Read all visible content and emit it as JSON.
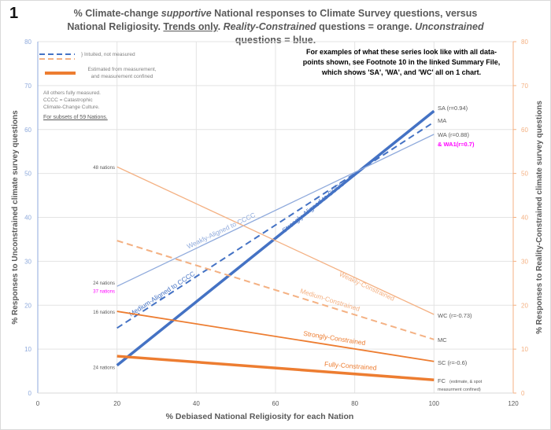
{
  "figure_number": "1",
  "title": {
    "part1": "% Climate-change ",
    "part2_italic": "supportive",
    "part3": " National responses to Climate Survey questions, versus National Religiosity. ",
    "part4_underlined": "Trends only",
    "part5": ". ",
    "part6_italic": "Reality-Constrained",
    "part7": " questions = orange. ",
    "part8_italic": "Unconstrained",
    "part9": " questions = blue."
  },
  "annotation": "For examples of what these series look like with all data-points shown, see Footnote 10 in the linked Summary File, which shows 'SA', 'WA', and 'WC' all on 1 chart.",
  "legend": {
    "dashed_label": "} Intuited, not measured",
    "solid_label_1": "Estimated from measurement,",
    "solid_label_2": "and measurement confined"
  },
  "notes": {
    "line1": "All others fully measured.",
    "line2": "CCCC = Catastrophic",
    "line3": "Climate-Change Culture.",
    "subsets": "For subsets of 59 Nations."
  },
  "chart_data": {
    "type": "line",
    "xlabel": "% Debiased National Religiosity for each Nation",
    "ylabel_left": "% Responses to Unconstrained climate survey questions",
    "ylabel_right": "% Responses to Reality-Constrained climate survey questions",
    "xlim": [
      0,
      120
    ],
    "ylim_left": [
      0,
      80
    ],
    "ylim_right": [
      0,
      80
    ],
    "x_ticks": [
      0,
      20,
      40,
      60,
      80,
      100,
      120
    ],
    "y_ticks": [
      0,
      10,
      20,
      30,
      40,
      50,
      60,
      70,
      80
    ],
    "grid": true,
    "colors": {
      "unconstrained": "#4472c4",
      "constrained": "#ed7d31",
      "light_blue": "#8faadc",
      "light_orange": "#f4b183",
      "magenta": "#ff00ff"
    },
    "series": [
      {
        "name": "Strongly-Aligned to CCCC",
        "end_label": "SA (r=0.94)",
        "x": [
          20,
          100
        ],
        "y": [
          6.3,
          64.2
        ],
        "style": "solid-thick",
        "color": "#4472c4"
      },
      {
        "name": "Medium-Aligned to CCCC",
        "end_label": "MA",
        "x": [
          20,
          100
        ],
        "y": [
          14.8,
          61.7
        ],
        "style": "dashed",
        "color": "#4472c4"
      },
      {
        "name": "Weakly-Aligned to CCCC",
        "end_label": "WA (r=0.88)",
        "end_label_2": "& WA1(r=0.7)",
        "x": [
          20,
          100
        ],
        "y": [
          24.3,
          58.9
        ],
        "style": "solid-thin",
        "color": "#8faadc"
      },
      {
        "name": "Weakly-Constrained",
        "end_label": "WC (r=-0.73)",
        "x": [
          20,
          100
        ],
        "y": [
          51.5,
          17.9
        ],
        "style": "solid-thin",
        "color": "#f4b183"
      },
      {
        "name": "Medium-Constrained",
        "end_label": "MC",
        "x": [
          20,
          100
        ],
        "y": [
          34.7,
          12.2
        ],
        "style": "dashed",
        "color": "#f4b183"
      },
      {
        "name": "Strongly-Constrained",
        "end_label": "SC (r=-0.6)",
        "x": [
          20,
          100
        ],
        "y": [
          18.6,
          7.2
        ],
        "style": "solid",
        "color": "#ed7d31"
      },
      {
        "name": "Fully-Constrained",
        "end_label": "FC",
        "end_note_1": "(estimate, & spot",
        "end_note_2": "measurment confined)",
        "x": [
          20,
          100
        ],
        "y": [
          8.4,
          3.0
        ],
        "style": "solid-thick",
        "color": "#ed7d31"
      }
    ],
    "start_labels": [
      {
        "text": "48 nations",
        "y": 51.5,
        "color": "#595959"
      },
      {
        "text": "24 nations",
        "y": 25.2,
        "color": "#595959"
      },
      {
        "text": "37 nations",
        "y": 23.4,
        "color": "#ff00ff"
      },
      {
        "text": "16 nations",
        "y": 18.6,
        "color": "#595959"
      },
      {
        "text": "24 nations",
        "y": 6.0,
        "color": "#595959"
      }
    ]
  }
}
